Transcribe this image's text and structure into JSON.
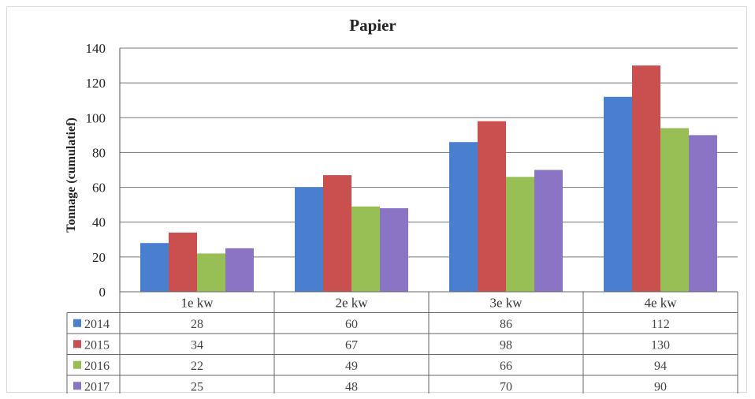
{
  "chart_data": {
    "type": "bar",
    "title": "Papier",
    "ylabel": "Tonnage (cumulatief)",
    "xlabel": "",
    "categories": [
      "1e kw",
      "2e kw",
      "3e kw",
      "4e kw"
    ],
    "series": [
      {
        "name": "2014",
        "color": "#4a7fd0",
        "values": [
          28,
          60,
          86,
          112
        ]
      },
      {
        "name": "2015",
        "color": "#c9504f",
        "values": [
          34,
          67,
          98,
          130
        ]
      },
      {
        "name": "2016",
        "color": "#97bf55",
        "values": [
          22,
          49,
          66,
          94
        ]
      },
      {
        "name": "2017",
        "color": "#8a74c4",
        "values": [
          25,
          48,
          70,
          90
        ]
      }
    ],
    "ylim": [
      0,
      140
    ],
    "yticks": [
      0,
      20,
      40,
      60,
      80,
      100,
      120,
      140
    ],
    "grid": true,
    "data_table": true
  }
}
